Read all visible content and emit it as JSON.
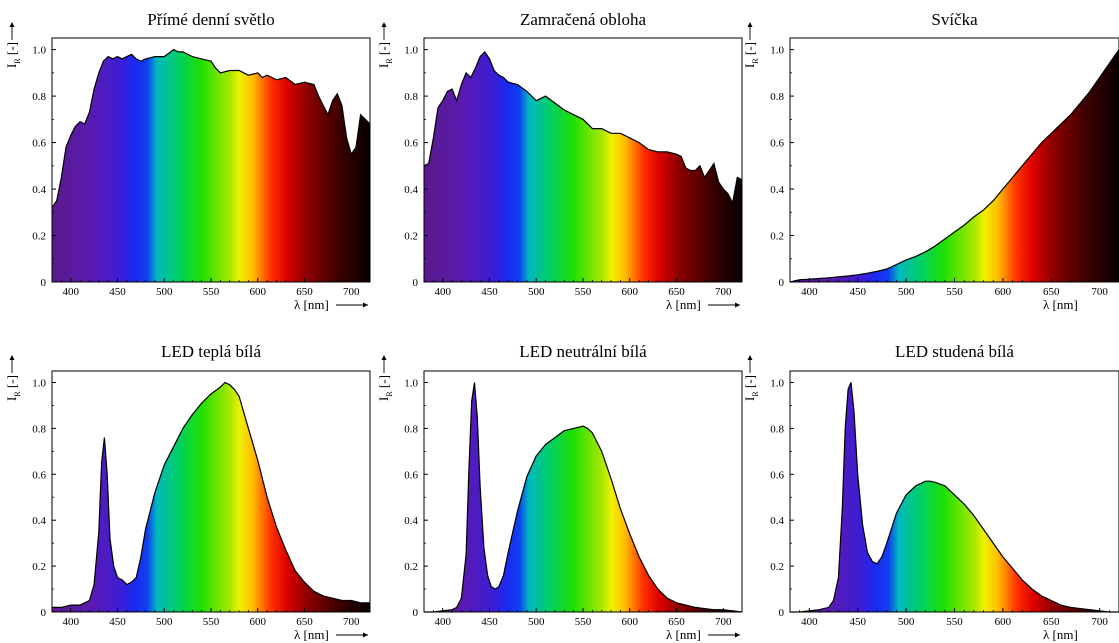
{
  "chart_data": [
    {
      "type": "area",
      "title": "Přímé denní světlo",
      "xlabel": "λ [nm]",
      "ylabel": "I R [-]",
      "xlim": [
        380,
        720
      ],
      "ylim": [
        0,
        1.05
      ],
      "xticks": [
        400,
        450,
        500,
        550,
        600,
        650,
        700
      ],
      "yticks": [
        0,
        0.2,
        0.4,
        0.6,
        0.8,
        1.0
      ],
      "x": [
        380,
        385,
        390,
        395,
        400,
        405,
        410,
        415,
        420,
        425,
        430,
        435,
        440,
        445,
        450,
        455,
        460,
        465,
        470,
        475,
        480,
        490,
        500,
        510,
        515,
        520,
        530,
        540,
        550,
        555,
        560,
        570,
        580,
        590,
        600,
        605,
        610,
        620,
        630,
        640,
        650,
        660,
        665,
        670,
        675,
        680,
        685,
        690,
        695,
        700,
        705,
        710,
        715,
        720
      ],
      "y": [
        0.32,
        0.35,
        0.45,
        0.58,
        0.63,
        0.67,
        0.69,
        0.68,
        0.73,
        0.83,
        0.9,
        0.95,
        0.97,
        0.96,
        0.97,
        0.96,
        0.97,
        0.98,
        0.96,
        0.95,
        0.96,
        0.97,
        0.97,
        1.0,
        0.99,
        0.99,
        0.97,
        0.96,
        0.95,
        0.92,
        0.9,
        0.91,
        0.91,
        0.89,
        0.9,
        0.88,
        0.89,
        0.87,
        0.88,
        0.85,
        0.86,
        0.85,
        0.8,
        0.76,
        0.72,
        0.78,
        0.81,
        0.76,
        0.62,
        0.55,
        0.58,
        0.72,
        0.7,
        0.68
      ]
    },
    {
      "type": "area",
      "title": "Zamračená obloha",
      "xlabel": "λ [nm]",
      "ylabel": "I R [-]",
      "xlim": [
        380,
        720
      ],
      "ylim": [
        0,
        1.05
      ],
      "xticks": [
        400,
        450,
        500,
        550,
        600,
        650,
        700
      ],
      "yticks": [
        0,
        0.2,
        0.4,
        0.6,
        0.8,
        1.0
      ],
      "x": [
        380,
        385,
        390,
        395,
        400,
        405,
        410,
        415,
        420,
        425,
        430,
        435,
        440,
        445,
        450,
        455,
        460,
        465,
        470,
        480,
        490,
        500,
        510,
        520,
        530,
        540,
        550,
        560,
        570,
        580,
        590,
        600,
        610,
        620,
        630,
        640,
        650,
        655,
        660,
        665,
        670,
        675,
        680,
        685,
        690,
        695,
        700,
        705,
        710,
        715,
        720
      ],
      "y": [
        0.5,
        0.51,
        0.62,
        0.75,
        0.78,
        0.82,
        0.83,
        0.78,
        0.85,
        0.9,
        0.88,
        0.92,
        0.97,
        0.99,
        0.96,
        0.91,
        0.89,
        0.88,
        0.86,
        0.85,
        0.82,
        0.78,
        0.8,
        0.77,
        0.74,
        0.72,
        0.7,
        0.66,
        0.66,
        0.64,
        0.64,
        0.62,
        0.6,
        0.57,
        0.56,
        0.56,
        0.55,
        0.54,
        0.49,
        0.48,
        0.48,
        0.5,
        0.45,
        0.48,
        0.51,
        0.43,
        0.4,
        0.38,
        0.34,
        0.45,
        0.44
      ]
    },
    {
      "type": "area",
      "title": "Svíčka",
      "xlabel": "λ [nm]",
      "ylabel": "I R [-]",
      "xlim": [
        380,
        720
      ],
      "ylim": [
        0,
        1.05
      ],
      "xticks": [
        400,
        450,
        500,
        550,
        600,
        650,
        700
      ],
      "yticks": [
        0,
        0.2,
        0.4,
        0.6,
        0.8,
        1.0
      ],
      "x": [
        380,
        390,
        400,
        410,
        420,
        430,
        440,
        450,
        460,
        470,
        480,
        490,
        500,
        510,
        520,
        530,
        540,
        550,
        560,
        570,
        580,
        590,
        600,
        610,
        620,
        630,
        640,
        650,
        660,
        670,
        680,
        690,
        700,
        710,
        720
      ],
      "y": [
        0.0,
        0.01,
        0.012,
        0.015,
        0.018,
        0.022,
        0.026,
        0.031,
        0.038,
        0.046,
        0.056,
        0.075,
        0.095,
        0.11,
        0.13,
        0.155,
        0.185,
        0.215,
        0.245,
        0.28,
        0.31,
        0.35,
        0.4,
        0.45,
        0.5,
        0.55,
        0.6,
        0.64,
        0.68,
        0.72,
        0.77,
        0.82,
        0.88,
        0.94,
        1.0
      ]
    },
    {
      "type": "area",
      "title": "LED teplá bílá",
      "xlabel": "λ [nm]",
      "ylabel": "I R [-]",
      "xlim": [
        380,
        720
      ],
      "ylim": [
        0,
        1.05
      ],
      "xticks": [
        400,
        450,
        500,
        550,
        600,
        650,
        700
      ],
      "yticks": [
        0,
        0.2,
        0.4,
        0.6,
        0.8,
        1.0
      ],
      "x": [
        380,
        390,
        400,
        410,
        420,
        425,
        430,
        433,
        436,
        439,
        442,
        446,
        450,
        455,
        460,
        465,
        470,
        475,
        480,
        490,
        500,
        510,
        520,
        530,
        540,
        550,
        560,
        565,
        570,
        575,
        580,
        590,
        600,
        610,
        620,
        630,
        640,
        650,
        660,
        670,
        680,
        690,
        700,
        710,
        720
      ],
      "y": [
        0.02,
        0.02,
        0.03,
        0.03,
        0.05,
        0.12,
        0.35,
        0.65,
        0.76,
        0.6,
        0.32,
        0.2,
        0.15,
        0.14,
        0.12,
        0.13,
        0.15,
        0.24,
        0.36,
        0.52,
        0.64,
        0.72,
        0.8,
        0.86,
        0.91,
        0.95,
        0.98,
        1.0,
        0.99,
        0.97,
        0.94,
        0.8,
        0.66,
        0.5,
        0.37,
        0.27,
        0.18,
        0.13,
        0.09,
        0.07,
        0.06,
        0.05,
        0.05,
        0.04,
        0.04
      ]
    },
    {
      "type": "area",
      "title": "LED neutrální bílá",
      "xlabel": "λ [nm]",
      "ylabel": "I R [-]",
      "xlim": [
        380,
        720
      ],
      "ylim": [
        0,
        1.05
      ],
      "xticks": [
        400,
        450,
        500,
        550,
        600,
        650,
        700
      ],
      "yticks": [
        0,
        0.2,
        0.4,
        0.6,
        0.8,
        1.0
      ],
      "x": [
        380,
        390,
        400,
        410,
        415,
        420,
        425,
        428,
        431,
        434,
        437,
        440,
        444,
        448,
        452,
        456,
        460,
        465,
        470,
        480,
        490,
        500,
        510,
        520,
        530,
        540,
        550,
        555,
        560,
        570,
        580,
        590,
        600,
        610,
        620,
        630,
        640,
        650,
        660,
        670,
        680,
        690,
        700,
        710,
        720
      ],
      "y": [
        0.0,
        0.0,
        0.005,
        0.01,
        0.02,
        0.06,
        0.25,
        0.62,
        0.92,
        1.0,
        0.85,
        0.55,
        0.28,
        0.16,
        0.11,
        0.1,
        0.11,
        0.16,
        0.26,
        0.44,
        0.59,
        0.68,
        0.73,
        0.76,
        0.79,
        0.8,
        0.81,
        0.8,
        0.78,
        0.7,
        0.58,
        0.45,
        0.34,
        0.24,
        0.16,
        0.1,
        0.06,
        0.04,
        0.03,
        0.02,
        0.015,
        0.01,
        0.01,
        0.005,
        0.0
      ]
    },
    {
      "type": "area",
      "title": "LED studená bílá",
      "xlabel": "λ [nm]",
      "ylabel": "I R [-]",
      "xlim": [
        380,
        720
      ],
      "ylim": [
        0,
        1.05
      ],
      "xticks": [
        400,
        450,
        500,
        550,
        600,
        650,
        700
      ],
      "yticks": [
        0,
        0.2,
        0.4,
        0.6,
        0.8,
        1.0
      ],
      "x": [
        380,
        390,
        400,
        410,
        420,
        425,
        430,
        434,
        437,
        440,
        443,
        446,
        450,
        455,
        460,
        465,
        470,
        475,
        480,
        490,
        500,
        510,
        520,
        525,
        530,
        540,
        550,
        560,
        570,
        580,
        590,
        600,
        610,
        620,
        630,
        640,
        650,
        660,
        670,
        680,
        690,
        700,
        710,
        720
      ],
      "y": [
        0.0,
        0.0,
        0.005,
        0.01,
        0.02,
        0.05,
        0.15,
        0.45,
        0.8,
        0.97,
        1.0,
        0.88,
        0.6,
        0.38,
        0.26,
        0.22,
        0.21,
        0.24,
        0.3,
        0.43,
        0.51,
        0.55,
        0.57,
        0.57,
        0.565,
        0.55,
        0.51,
        0.47,
        0.42,
        0.36,
        0.3,
        0.24,
        0.19,
        0.14,
        0.1,
        0.07,
        0.05,
        0.03,
        0.02,
        0.015,
        0.01,
        0.005,
        0.0,
        0.0
      ]
    }
  ]
}
